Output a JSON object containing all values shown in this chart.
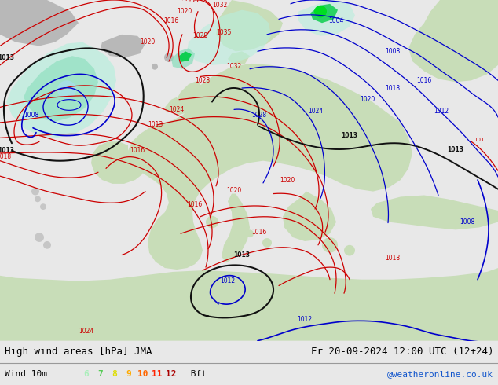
{
  "title_left": "High wind areas [hPa] JMA",
  "title_right": "Fr 20-09-2024 12:00 UTC (12+24)",
  "subtitle_left": "Wind 10m",
  "bft_labels": [
    "6",
    "7",
    "8",
    "9",
    "10",
    "11",
    "12"
  ],
  "bft_colors": [
    "#aaeebb",
    "#55cc55",
    "#dddd00",
    "#ffaa00",
    "#ff6600",
    "#ff2200",
    "#aa0000"
  ],
  "bft_suffix": " Bft",
  "watermark": "@weatheronline.co.uk",
  "watermark_color": "#1155cc",
  "bg_ocean": "#d8eef8",
  "bg_land": "#c8ddb8",
  "bg_land_grey": "#b8b8b8",
  "bg_land_dark": "#a8c898",
  "wind_shade_1": "#b8eedd",
  "wind_shade_2": "#88ddbb",
  "wind_shade_3": "#44cc88",
  "wind_shade_green": "#00cc44",
  "red": "#cc0000",
  "blue": "#0000cc",
  "black": "#111111",
  "bottom_bg": "#e8e8e8",
  "font_size_title": 9,
  "font_size_sub": 8,
  "fig_width": 6.34,
  "fig_height": 4.9,
  "dpi": 100
}
